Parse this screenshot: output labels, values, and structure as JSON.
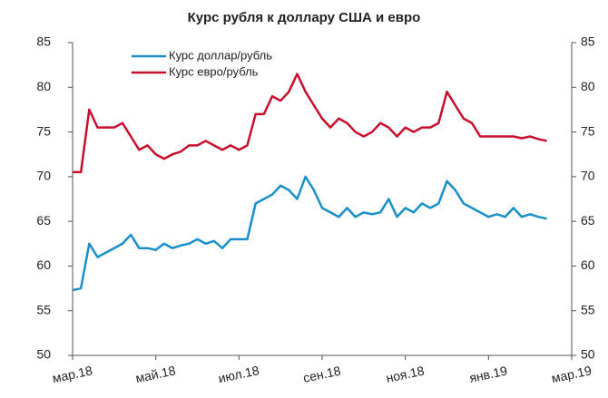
{
  "chart_data": {
    "type": "line",
    "title": "Курс рубля к доллару США и евро",
    "categories": [
      "мар.18",
      null,
      null,
      null,
      null,
      null,
      null,
      null,
      null,
      null,
      "май.18",
      null,
      null,
      null,
      null,
      null,
      null,
      null,
      null,
      null,
      "июл.18",
      null,
      null,
      null,
      null,
      null,
      null,
      null,
      null,
      null,
      "сен.18",
      null,
      null,
      null,
      null,
      null,
      null,
      null,
      null,
      null,
      "ноя.18",
      null,
      null,
      null,
      null,
      null,
      null,
      null,
      null,
      null,
      "янв.19",
      null,
      null,
      null,
      null,
      null,
      null,
      null,
      null,
      null,
      "мар.19"
    ],
    "series": [
      {
        "name": "Курс доллар/рубль",
        "color": "#1a8fc9",
        "values": [
          57.3,
          57.5,
          62.5,
          61.0,
          61.5,
          62.0,
          62.5,
          63.5,
          62.0,
          62.0,
          61.8,
          62.5,
          62.0,
          62.3,
          62.5,
          63.0,
          62.5,
          62.8,
          62.0,
          63.0,
          63.0,
          63.0,
          67.0,
          67.5,
          68.0,
          69.0,
          68.5,
          67.5,
          70.0,
          68.5,
          66.5,
          66.0,
          65.5,
          66.5,
          65.5,
          66.0,
          65.8,
          66.0,
          67.5,
          65.5,
          66.5,
          66.0,
          67.0,
          66.5,
          67.0,
          69.5,
          68.5,
          67.0,
          66.5,
          66.0,
          65.5,
          65.8,
          65.5,
          66.5,
          65.5,
          65.8,
          65.5,
          65.3,
          null,
          null,
          null
        ]
      },
      {
        "name": "Курс евро/рубль",
        "color": "#c8102e",
        "values": [
          70.5,
          70.5,
          77.5,
          75.5,
          75.5,
          75.5,
          76.0,
          74.5,
          73.0,
          73.5,
          72.5,
          72.0,
          72.5,
          72.8,
          73.5,
          73.5,
          74.0,
          73.5,
          73.0,
          73.5,
          73.0,
          73.5,
          77.0,
          77.0,
          79.0,
          78.5,
          79.5,
          81.5,
          79.5,
          78.0,
          76.5,
          75.5,
          76.5,
          76.0,
          75.0,
          74.5,
          75.0,
          76.0,
          75.5,
          74.5,
          75.5,
          75.0,
          75.5,
          75.5,
          76.0,
          79.5,
          78.0,
          76.5,
          76.0,
          74.5,
          74.5,
          74.5,
          74.5,
          74.5,
          74.3,
          74.5,
          74.2,
          74.0,
          null,
          null,
          null
        ]
      }
    ],
    "ylim": [
      50,
      85
    ],
    "yticks": [
      50,
      55,
      60,
      65,
      70,
      75,
      80,
      85
    ],
    "y2lim": [
      50,
      85
    ],
    "y2ticks": [
      50,
      55,
      60,
      65,
      70,
      75,
      80,
      85
    ],
    "grid": false,
    "legend": "top-left"
  }
}
